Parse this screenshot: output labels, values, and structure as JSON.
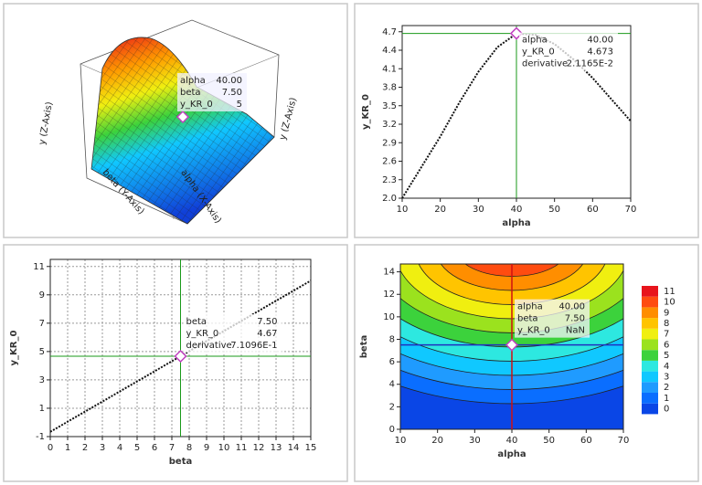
{
  "chart_data": [
    {
      "type": "surface3d",
      "axis_labels": [
        "alpha (X-Axis)",
        "beta (Y-Axis)",
        "y (Z-Axis)",
        "y (Z-Axis)"
      ],
      "tooltip": [
        {
          "label": "alpha",
          "text": "40.00",
          "color": "#2030c0"
        },
        {
          "label": "beta",
          "text": "7.50",
          "color": "#d01010"
        },
        {
          "label": "y_KR_0",
          "text": "5",
          "color": "#222222"
        }
      ]
    },
    {
      "type": "line",
      "xlabel": "alpha",
      "ylabel": "y_KR_0",
      "x": [
        10,
        15,
        20,
        25,
        30,
        35,
        40,
        45,
        50,
        55,
        60,
        65,
        70
      ],
      "values": [
        2.0,
        2.5,
        3.0,
        3.55,
        4.05,
        4.45,
        4.67,
        4.65,
        4.5,
        4.25,
        3.95,
        3.6,
        3.25
      ],
      "color": "#111111",
      "grid": false,
      "xlim": [
        10,
        70
      ],
      "xticks": [
        10,
        20,
        30,
        40,
        50,
        60,
        70
      ],
      "ylim": [
        2,
        4.8
      ],
      "yticks": [
        {
          "value": 2,
          "label": "2.0"
        },
        2.3,
        2.6,
        2.9,
        3.2,
        3.5,
        3.8,
        4.1,
        4.4,
        4.7
      ],
      "crosshair": {
        "x": 40,
        "y": 4.673,
        "color": "#1a9a1a"
      },
      "tooltip": [
        {
          "label": "alpha",
          "text": "40.00",
          "color": "#1a9a1a"
        },
        {
          "label": "y_KR_0",
          "text": "4.673",
          "color": "#1a9a1a"
        },
        {
          "label": "derivative",
          "text": "2.1165E-2",
          "color": "#1a9a1a"
        }
      ]
    },
    {
      "type": "line",
      "xlabel": "beta",
      "ylabel": "y_KR_0",
      "x": [
        0,
        7.5,
        15
      ],
      "values": [
        -0.66,
        4.67,
        10.0
      ],
      "color": "#111111",
      "grid": true,
      "xlim": [
        0,
        15
      ],
      "xticks": [
        0,
        1,
        2,
        3,
        4,
        5,
        6,
        7,
        8,
        9,
        10,
        11,
        12,
        13,
        14,
        15
      ],
      "ylim": [
        -1,
        11.5
      ],
      "yticks": [
        -1,
        1,
        3,
        5,
        7,
        9,
        11
      ],
      "crosshair": {
        "x": 7.5,
        "y": 4.67,
        "color": "#1a9a1a"
      },
      "tooltip": [
        {
          "label": "beta",
          "text": "7.50",
          "color": "#1a9a1a"
        },
        {
          "label": "y_KR_0",
          "text": "4.67",
          "color": "#1a9a1a"
        },
        {
          "label": "derivative",
          "text": "7.1096E-1",
          "color": "#1a9a1a"
        }
      ]
    },
    {
      "type": "contour",
      "xlabel": "alpha",
      "ylabel": "beta",
      "xlim": [
        10,
        70
      ],
      "xticks": [
        10,
        20,
        30,
        40,
        50,
        60,
        70
      ],
      "ylim": [
        0,
        14.7
      ],
      "yticks": [
        0,
        2,
        4,
        6,
        8,
        10,
        12,
        14
      ],
      "levels": [
        0,
        1,
        2,
        3,
        4,
        5,
        6,
        7,
        8,
        9,
        10,
        11
      ],
      "colors": [
        "#0a46e6",
        "#0a6eff",
        "#1f9bff",
        "#10c8ff",
        "#2de8e0",
        "#3cd23c",
        "#9be21e",
        "#f0ef10",
        "#ffc400",
        "#ff8e00",
        "#ff4c10",
        "#e8141c"
      ],
      "crosshair": {
        "x": 40,
        "y": 7.5,
        "xcolor": "#d01010",
        "ycolor": "#2030c0"
      },
      "tooltip": [
        {
          "label": "alpha",
          "text": "40.00",
          "color": "#2030c0"
        },
        {
          "label": "beta",
          "text": "7.50",
          "color": "#d01010"
        },
        {
          "label": "y_KR_0",
          "text": "NaN",
          "color": "#222222"
        }
      ]
    }
  ]
}
